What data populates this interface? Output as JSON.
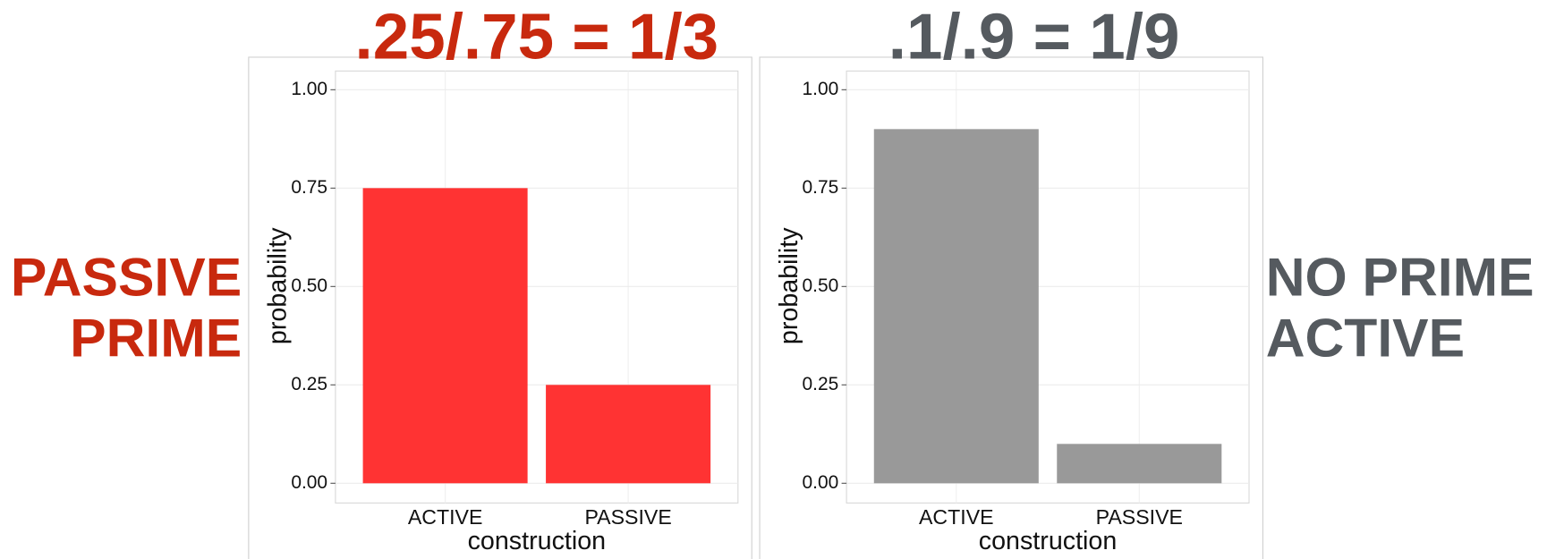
{
  "chart_data": [
    {
      "type": "bar",
      "title": ".25/.75 = 1/3",
      "title_color": "#c8290e",
      "annotation": [
        "PASSIVE",
        "PRIME"
      ],
      "annotation_side": "left",
      "categories": [
        "ACTIVE",
        "PASSIVE"
      ],
      "values": [
        0.75,
        0.25
      ],
      "color": "#ff3333",
      "x_label": "construction",
      "y_label": "probability",
      "ylim": [
        0,
        1
      ],
      "yticks": [
        {
          "value": 0,
          "label": "0.00"
        },
        {
          "value": 0.25,
          "label": "0.25"
        },
        {
          "value": 0.5,
          "label": "0.50"
        },
        {
          "value": 0.75,
          "label": "0.75"
        },
        {
          "value": 1,
          "label": "1.00"
        }
      ],
      "grid": true
    },
    {
      "type": "bar",
      "title": ".1/.9 = 1/9",
      "title_color": "#555a5f",
      "annotation": [
        "NO PRIME",
        "ACTIVE"
      ],
      "annotation_side": "right",
      "categories": [
        "ACTIVE",
        "PASSIVE"
      ],
      "values": [
        0.9,
        0.1
      ],
      "color": "#999999",
      "x_label": "construction",
      "y_label": "probability",
      "ylim": [
        0,
        1
      ],
      "yticks": [
        {
          "value": 0,
          "label": "0.00"
        },
        {
          "value": 0.25,
          "label": "0.25"
        },
        {
          "value": 0.5,
          "label": "0.50"
        },
        {
          "value": 0.75,
          "label": "0.75"
        },
        {
          "value": 1,
          "label": "1.00"
        }
      ],
      "grid": true
    }
  ]
}
